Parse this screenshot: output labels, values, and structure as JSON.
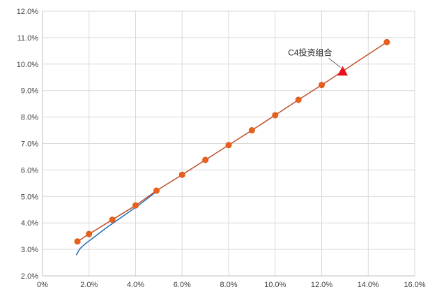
{
  "chart_data": {
    "type": "scatter",
    "title": "",
    "xlabel": "",
    "ylabel": "",
    "xlim": [
      0,
      16
    ],
    "ylim": [
      2,
      12
    ],
    "x_ticks": [
      0,
      2,
      4,
      6,
      8,
      10,
      12,
      14,
      16
    ],
    "x_tick_labels": [
      "0%",
      "2.0%",
      "4.0%",
      "6.0%",
      "8.0%",
      "10.0%",
      "12.0%",
      "14.0%",
      "16.0%"
    ],
    "y_ticks": [
      2,
      3,
      4,
      5,
      6,
      7,
      8,
      9,
      10,
      11,
      12
    ],
    "y_tick_labels": [
      "2.0%",
      "3.0%",
      "4.0%",
      "5.0%",
      "6.0%",
      "7.0%",
      "8.0%",
      "9.0%",
      "10.0%",
      "11.0%",
      "12.0%"
    ],
    "grid": true,
    "series": [
      {
        "type": "line-markers",
        "color": "#E8601C",
        "line_color": "#C0502A",
        "marker": "circle",
        "points": [
          {
            "x": 1.5,
            "y": 3.3
          },
          {
            "x": 2.0,
            "y": 3.58
          },
          {
            "x": 3.0,
            "y": 4.12
          },
          {
            "x": 4.0,
            "y": 4.66
          },
          {
            "x": 4.9,
            "y": 5.22
          },
          {
            "x": 6.0,
            "y": 5.82
          },
          {
            "x": 7.0,
            "y": 6.38
          },
          {
            "x": 8.0,
            "y": 6.94
          },
          {
            "x": 9.0,
            "y": 7.5
          },
          {
            "x": 10.0,
            "y": 8.07
          },
          {
            "x": 11.0,
            "y": 8.65
          },
          {
            "x": 12.0,
            "y": 9.21
          },
          {
            "x": 14.8,
            "y": 10.83
          }
        ]
      },
      {
        "type": "curve",
        "color": "#1F6FB4",
        "points": [
          {
            "x": 1.45,
            "y": 2.78
          },
          {
            "x": 1.6,
            "y": 3.02
          },
          {
            "x": 1.85,
            "y": 3.22
          },
          {
            "x": 2.2,
            "y": 3.45
          },
          {
            "x": 2.8,
            "y": 3.85
          },
          {
            "x": 3.5,
            "y": 4.28
          },
          {
            "x": 4.2,
            "y": 4.71
          },
          {
            "x": 4.9,
            "y": 5.19
          }
        ]
      }
    ],
    "annotation": {
      "text": "C4投资组合",
      "x": 12.9,
      "y": 9.72,
      "marker": "triangle",
      "color": "#E8101C"
    }
  }
}
